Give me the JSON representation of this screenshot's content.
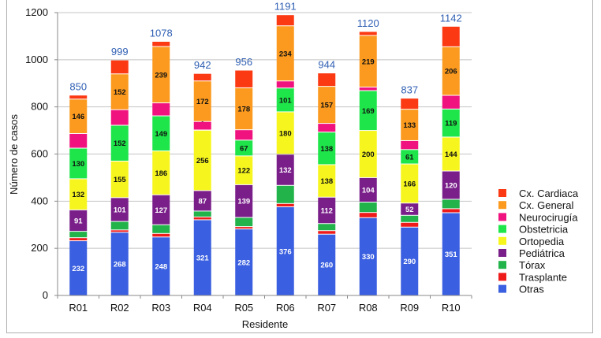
{
  "chart_data": {
    "type": "bar",
    "stacked": true,
    "title": "",
    "xlabel": "Residente",
    "ylabel": "Número de casos",
    "ylim": [
      0,
      1200
    ],
    "yticks": [
      0,
      200,
      400,
      600,
      800,
      1000,
      1200
    ],
    "grid": true,
    "legend_position": "right",
    "categories": [
      "R01",
      "R02",
      "R03",
      "R04",
      "R05",
      "R06",
      "R07",
      "R08",
      "R09",
      "R10"
    ],
    "totals": [
      850,
      999,
      1078,
      942,
      956,
      1191,
      944,
      1120,
      837,
      1142
    ],
    "series": [
      {
        "name": "Otras",
        "color": "#3a5fe0",
        "label_color": "#ffffff",
        "show_labels": true,
        "values": [
          232,
          268,
          248,
          321,
          282,
          376,
          260,
          330,
          290,
          351
        ]
      },
      {
        "name": "Trasplante",
        "color": "#ef1a1a",
        "label_color": "#ffffff",
        "show_labels": false,
        "values": [
          13,
          10,
          15,
          12,
          10,
          14,
          15,
          22,
          20,
          17
        ]
      },
      {
        "name": "Tórax",
        "color": "#22b34a",
        "label_color": "#ffffff",
        "show_labels": false,
        "values": [
          27,
          36,
          37,
          25,
          39,
          77,
          30,
          44,
          30,
          40
        ]
      },
      {
        "name": "Pediátrica",
        "color": "#7a1f8a",
        "label_color": "#ffffff",
        "show_labels": true,
        "values": [
          91,
          101,
          127,
          87,
          139,
          132,
          112,
          104,
          52,
          120
        ]
      },
      {
        "name": "Ortopedia",
        "color": "#f6f61e",
        "label_color": "#111111",
        "show_labels": true,
        "values": [
          132,
          155,
          186,
          256,
          122,
          180,
          138,
          200,
          166,
          144
        ]
      },
      {
        "name": "Obstetricia",
        "color": "#1ee64a",
        "label_color": "#111111",
        "show_labels": true,
        "values": [
          130,
          152,
          149,
          1,
          67,
          101,
          138,
          169,
          61,
          119
        ]
      },
      {
        "name": "Neurocirugía",
        "color": "#f0137f",
        "label_color": "#ffffff",
        "show_labels": false,
        "values": [
          62,
          66,
          55,
          36,
          44,
          30,
          37,
          15,
          38,
          58
        ]
      },
      {
        "name": "Cx. General",
        "color": "#fb9a1e",
        "label_color": "#111111",
        "show_labels": true,
        "values": [
          146,
          152,
          239,
          172,
          178,
          234,
          157,
          219,
          133,
          206
        ]
      },
      {
        "name": "Cx. Cardiaca",
        "color": "#fb3a14",
        "label_color": "#ffffff",
        "show_labels": false,
        "values": [
          17,
          59,
          22,
          32,
          75,
          47,
          57,
          17,
          47,
          87
        ]
      }
    ],
    "legend_order": [
      "Cx. Cardiaca",
      "Cx. General",
      "Neurocirugía",
      "Obstetricia",
      "Ortopedia",
      "Pediátrica",
      "Tórax",
      "Trasplante",
      "Otras"
    ]
  }
}
